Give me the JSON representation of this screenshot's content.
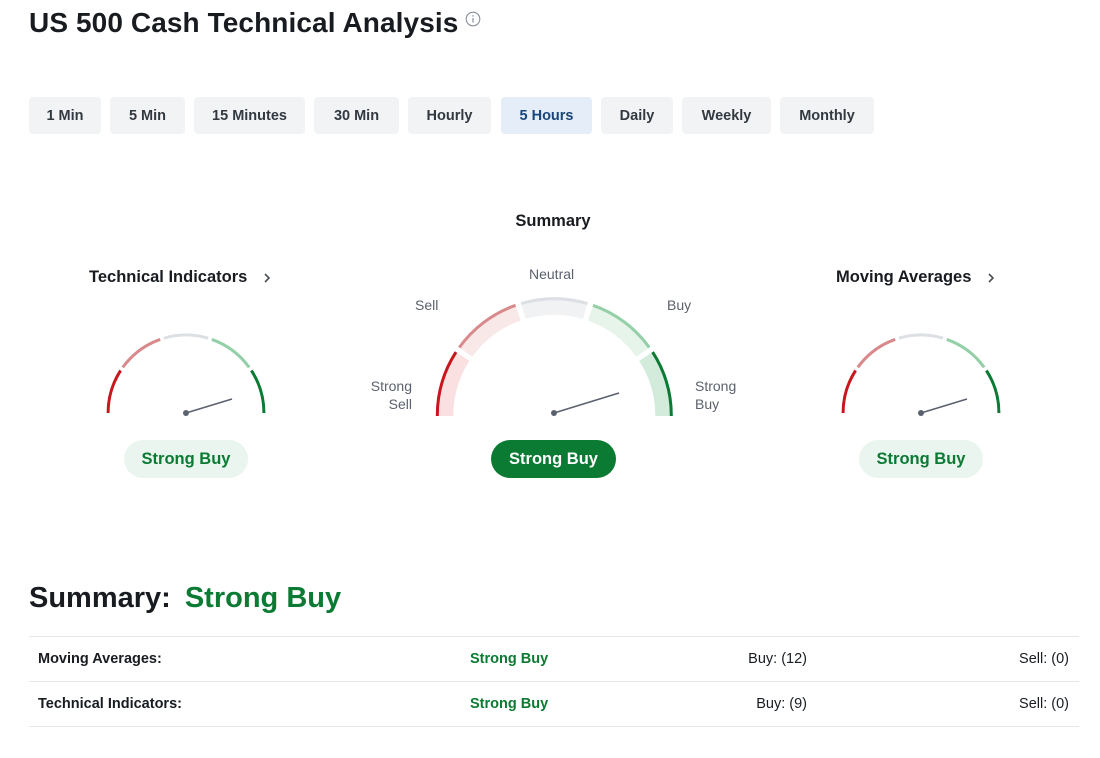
{
  "page": {
    "title": "US 500 Cash Technical Analysis",
    "info_icon": "info-icon"
  },
  "timeframes": {
    "active": "5 Hours",
    "items": [
      "1 Min",
      "5 Min",
      "15 Minutes",
      "30 Min",
      "Hourly",
      "5 Hours",
      "Daily",
      "Weekly",
      "Monthly"
    ]
  },
  "summary_gauge": {
    "title": "Summary",
    "labels": {
      "neutral": "Neutral",
      "sell": "Sell",
      "buy": "Buy",
      "strong_sell_1": "Strong",
      "strong_sell_2": "Sell",
      "strong_buy_1": "Strong",
      "strong_buy_2": "Buy"
    },
    "result": "Strong Buy"
  },
  "technical_indicators": {
    "title": "Technical Indicators",
    "result": "Strong Buy"
  },
  "moving_averages": {
    "title": "Moving Averages",
    "result": "Strong Buy"
  },
  "summary": {
    "label": "Summary:",
    "value": "Strong Buy"
  },
  "table": {
    "rows": [
      {
        "name": "Moving Averages:",
        "status": "Strong Buy",
        "buy": "Buy: (12)",
        "sell": "Sell: (0)"
      },
      {
        "name": "Technical Indicators:",
        "status": "Strong Buy",
        "buy": "Buy: (9)",
        "sell": "Sell: (0)"
      }
    ]
  },
  "colors": {
    "strong_buy": "#0b7a33",
    "strong_sell": "#c8161d",
    "active_tab_bg": "#e4edf8",
    "active_tab_text": "#19457a"
  }
}
